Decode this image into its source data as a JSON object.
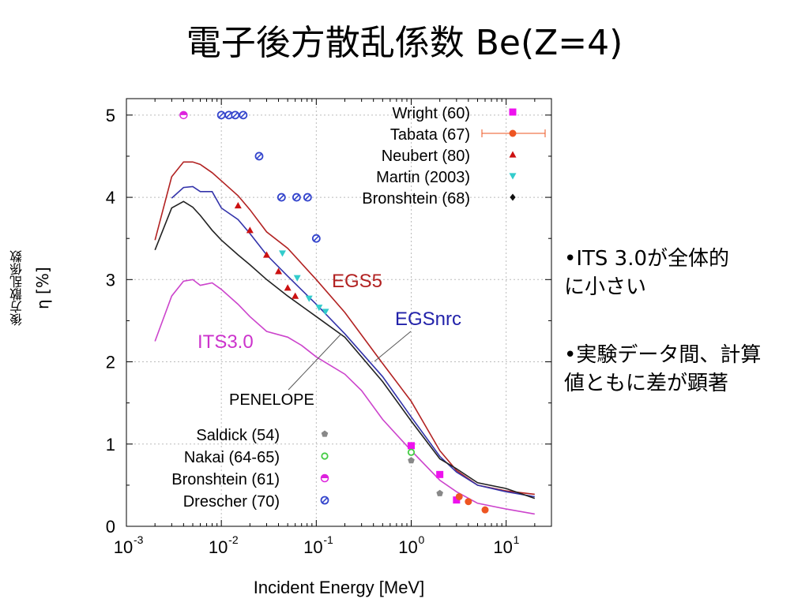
{
  "slide": {
    "title": "電子後方散乱係数 Be(Z=4)",
    "notes": [
      {
        "line1": "•ITS 3.0が全体的",
        "line2": "に小さい"
      },
      {
        "line1": "•実験データ間、計算",
        "line2": "値ともに差が顕著"
      }
    ]
  },
  "chart_data": {
    "type": "scatter",
    "xlabel": "Incident Energy [MeV]",
    "ylabel_jp": "後方散乱係数",
    "ylabel": "η [%]",
    "xscale": "log",
    "xlim": [
      0.001,
      30
    ],
    "ylim": [
      0,
      5.2
    ],
    "x_ticks": [
      0.001,
      0.01,
      0.1,
      1,
      10
    ],
    "x_tick_labels": [
      {
        "base": "10",
        "exp": "-3"
      },
      {
        "base": "10",
        "exp": "-2"
      },
      {
        "base": "10",
        "exp": "-1"
      },
      {
        "base": "10",
        "exp": "0"
      },
      {
        "base": "10",
        "exp": "1"
      }
    ],
    "y_ticks": [
      0,
      1,
      2,
      3,
      4,
      5
    ],
    "grid": true,
    "curves": [
      {
        "name": "EGS5",
        "color": "#b22222",
        "x": [
          0.002,
          0.003,
          0.004,
          0.005,
          0.006,
          0.008,
          0.01,
          0.015,
          0.02,
          0.03,
          0.05,
          0.1,
          0.2,
          0.5,
          1,
          2,
          3,
          5,
          10,
          20
        ],
        "y": [
          3.48,
          4.25,
          4.43,
          4.43,
          4.4,
          4.3,
          4.2,
          4.02,
          3.85,
          3.58,
          3.38,
          3.0,
          2.6,
          1.98,
          1.52,
          0.92,
          0.68,
          0.5,
          0.43,
          0.39
        ]
      },
      {
        "name": "EGSnrc",
        "color": "#3333aa",
        "x": [
          0.003,
          0.004,
          0.005,
          0.006,
          0.008,
          0.01,
          0.015,
          0.02,
          0.03,
          0.05,
          0.1,
          0.2,
          0.5,
          1,
          2,
          3,
          5,
          10,
          20
        ],
        "y": [
          3.99,
          4.12,
          4.13,
          4.07,
          4.07,
          3.87,
          3.73,
          3.56,
          3.3,
          3.04,
          2.7,
          2.34,
          1.82,
          1.33,
          0.85,
          0.66,
          0.5,
          0.42,
          0.36
        ]
      },
      {
        "name": "PENELOPE",
        "color": "#222222",
        "x": [
          0.002,
          0.003,
          0.004,
          0.005,
          0.006,
          0.008,
          0.01,
          0.015,
          0.02,
          0.03,
          0.05,
          0.1,
          0.2,
          0.5,
          1,
          2,
          3,
          5,
          10,
          20
        ],
        "y": [
          3.36,
          3.87,
          3.95,
          3.88,
          3.78,
          3.6,
          3.48,
          3.3,
          3.18,
          3.0,
          2.8,
          2.55,
          2.3,
          1.76,
          1.28,
          0.82,
          0.7,
          0.53,
          0.46,
          0.34
        ]
      },
      {
        "name": "ITS3.0",
        "color": "#cc44cc",
        "x": [
          0.002,
          0.003,
          0.004,
          0.005,
          0.006,
          0.008,
          0.01,
          0.015,
          0.02,
          0.03,
          0.05,
          0.07,
          0.1,
          0.2,
          0.3,
          0.5,
          1,
          2,
          3,
          5,
          10,
          20
        ],
        "y": [
          2.25,
          2.8,
          2.98,
          3.0,
          2.93,
          2.96,
          2.88,
          2.7,
          2.55,
          2.37,
          2.3,
          2.2,
          2.06,
          1.85,
          1.65,
          1.3,
          0.92,
          0.56,
          0.42,
          0.28,
          0.21,
          0.15
        ]
      }
    ],
    "curve_labels": [
      {
        "text": "EGS5",
        "color": "#b22222"
      },
      {
        "text": "EGSnrc",
        "color": "#2222aa"
      },
      {
        "text": "ITS3.0",
        "color": "#cc33cc"
      },
      {
        "text": "PENELOPE",
        "color": "#000000"
      }
    ],
    "series": [
      {
        "name": "Wright (60)",
        "marker": "square",
        "color": "#ee11ee",
        "points": [
          [
            1.0,
            0.98
          ],
          [
            2.0,
            0.63
          ],
          [
            3.0,
            0.32
          ]
        ]
      },
      {
        "name": "Tabata (67)",
        "marker": "circle-errorbar",
        "color": "#ee5522",
        "points": [
          [
            3.2,
            0.36
          ],
          [
            4.0,
            0.3
          ],
          [
            6.0,
            0.2
          ]
        ]
      },
      {
        "name": "Neubert (80)",
        "marker": "triangle-up",
        "color": "#cc1111",
        "points": [
          [
            0.015,
            3.9
          ],
          [
            0.02,
            3.6
          ],
          [
            0.03,
            3.3
          ],
          [
            0.04,
            3.1
          ],
          [
            0.05,
            2.9
          ],
          [
            0.06,
            2.8
          ]
        ]
      },
      {
        "name": "Martin (2003)",
        "marker": "triangle-down",
        "color": "#33cccc",
        "points": [
          [
            0.044,
            3.32
          ],
          [
            0.063,
            3.02
          ],
          [
            0.084,
            2.77
          ],
          [
            0.107,
            2.66
          ],
          [
            0.125,
            2.61
          ]
        ]
      },
      {
        "name": "Bronshtein (68)",
        "marker": "diamond",
        "color": "#111111",
        "points": []
      },
      {
        "name": "Saldick (54)",
        "marker": "pentagon",
        "color": "#888888",
        "points": [
          [
            1.0,
            0.8
          ],
          [
            2.0,
            0.4
          ]
        ]
      },
      {
        "name": "Nakai (64-65)",
        "marker": "open-circle",
        "color": "#44cc44",
        "points": [
          [
            1.0,
            0.9
          ]
        ]
      },
      {
        "name": "Bronshtein (61)",
        "marker": "half-circle",
        "color": "#dd22dd",
        "points": [
          [
            0.004,
            5.0
          ]
        ]
      },
      {
        "name": "Drescher (70)",
        "marker": "hatched-circle",
        "color": "#3344cc",
        "points": [
          [
            0.01,
            5.0
          ],
          [
            0.012,
            5.0
          ],
          [
            0.014,
            5.0
          ],
          [
            0.017,
            5.0
          ],
          [
            0.025,
            4.5
          ],
          [
            0.043,
            4.0
          ],
          [
            0.062,
            4.0
          ],
          [
            0.081,
            4.0
          ],
          [
            0.1,
            3.5
          ]
        ]
      }
    ]
  }
}
